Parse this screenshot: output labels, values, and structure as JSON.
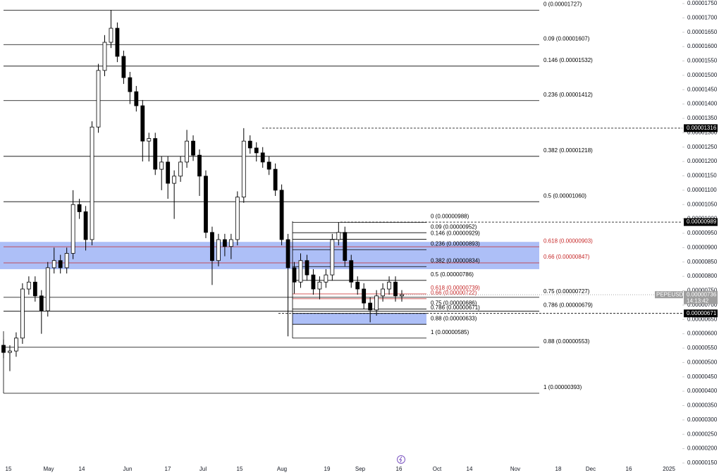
{
  "chart_data": {
    "type": "candlestick",
    "symbol": "PEPEUSDT",
    "last_price": {
      "value": 7.36e-06,
      "label": "0.00000736"
    },
    "countdown": "14:13:42",
    "up_color": "#ffffff",
    "down_color": "#000000",
    "zone_color": "#5b7ff0",
    "x_labels": [
      "15",
      "May",
      "14",
      "Jun",
      "17",
      "Jul",
      "15",
      "Aug",
      "19",
      "Sep",
      "16",
      "Oct",
      "14",
      "Nov",
      "18",
      "Dec",
      "16",
      "2025"
    ],
    "ylim": [
      1.5e-06,
      1.75e-05
    ],
    "yticks": [
      {
        "value": 1.75e-05,
        "label": "0.00001750"
      },
      {
        "value": 1.7e-05,
        "label": "0.00001700"
      },
      {
        "value": 1.65e-05,
        "label": "0.00001650"
      },
      {
        "value": 1.6e-05,
        "label": "0.00001600"
      },
      {
        "value": 1.55e-05,
        "label": "0.00001550"
      },
      {
        "value": 1.5e-05,
        "label": "0.00001500"
      },
      {
        "value": 1.45e-05,
        "label": "0.00001450"
      },
      {
        "value": 1.4e-05,
        "label": "0.00001400"
      },
      {
        "value": 1.35e-05,
        "label": "0.00001350"
      },
      {
        "value": 1.3e-05,
        "label": "0.00001300"
      },
      {
        "value": 1.25e-05,
        "label": "0.00001250"
      },
      {
        "value": 1.2e-05,
        "label": "0.00001200"
      },
      {
        "value": 1.15e-05,
        "label": "0.00001150"
      },
      {
        "value": 1.1e-05,
        "label": "0.00001100"
      },
      {
        "value": 1.05e-05,
        "label": "0.00001050"
      },
      {
        "value": 1e-05,
        "label": "0.00001000"
      },
      {
        "value": 9.5e-06,
        "label": "0.00000950"
      },
      {
        "value": 9e-06,
        "label": "0.00000900"
      },
      {
        "value": 8.5e-06,
        "label": "0.00000850"
      },
      {
        "value": 8e-06,
        "label": "0.00000800"
      },
      {
        "value": 7.5e-06,
        "label": "0.00000750"
      },
      {
        "value": 7e-06,
        "label": "0.00000700"
      },
      {
        "value": 6.5e-06,
        "label": "0.00000650"
      },
      {
        "value": 6e-06,
        "label": "0.00000600"
      },
      {
        "value": 5.5e-06,
        "label": "0.00000550"
      },
      {
        "value": 5e-06,
        "label": "0.00000500"
      },
      {
        "value": 4.5e-06,
        "label": "0.00000450"
      },
      {
        "value": 4e-06,
        "label": "0.00000400"
      },
      {
        "value": 3.5e-06,
        "label": "0.00000350"
      },
      {
        "value": 3e-06,
        "label": "0.00000300"
      },
      {
        "value": 2.5e-06,
        "label": "0.00000250"
      },
      {
        "value": 2e-06,
        "label": "0.00000200"
      },
      {
        "value": 1.5e-06,
        "label": "0.00000150"
      }
    ],
    "candles": [
      [
        5.6e-06,
        5.8e-06,
        5.15e-06,
        5.35e-06
      ],
      [
        5.35e-06,
        5.6e-06,
        4.7e-06,
        5.4e-06
      ],
      [
        5.4e-06,
        6.05e-06,
        5.2e-06,
        5.85e-06
      ],
      [
        5.85e-06,
        7.76e-06,
        5.65e-06,
        7.56e-06
      ],
      [
        7.56e-06,
        8e-06,
        7.36e-06,
        7.8e-06
      ],
      [
        7.8e-06,
        8e-06,
        7.12e-06,
        7.32e-06
      ],
      [
        7.32e-06,
        7.52e-06,
        6e-06,
        6.8e-06
      ],
      [
        6.8e-06,
        8.5e-06,
        6.6e-06,
        8.3e-06
      ],
      [
        8.3e-06,
        9e-06,
        8.1e-06,
        8.55e-06
      ],
      [
        8.55e-06,
        8.75e-06,
        8.1e-06,
        8.3e-06
      ],
      [
        8.3e-06,
        9e-06,
        8.1e-06,
        8.8e-06
      ],
      [
        8.8e-06,
        1.1e-05,
        8.6e-06,
        1.05e-05
      ],
      [
        1.05e-05,
        1.07e-05,
        1e-05,
        1.025e-05
      ],
      [
        1.025e-05,
        1.045e-05,
        8.9e-06,
        9.28e-06
      ],
      [
        9.28e-06,
        1.34e-05,
        9.08e-06,
        1.32e-05
      ],
      [
        1.32e-05,
        1.54e-05,
        1.3e-05,
        1.517e-05
      ],
      [
        1.517e-05,
        1.64e-05,
        1.497e-05,
        1.615e-05
      ],
      [
        1.615e-05,
        1.727e-05,
        1.595e-05,
        1.664e-05
      ],
      [
        1.664e-05,
        1.684e-05,
        1.546e-05,
        1.566e-05
      ],
      [
        1.566e-05,
        1.586e-05,
        1.47e-05,
        1.492e-05
      ],
      [
        1.492e-05,
        1.512e-05,
        1.4e-05,
        1.443e-05
      ],
      [
        1.443e-05,
        1.463e-05,
        1.374e-05,
        1.394e-05
      ],
      [
        1.394e-05,
        1.414e-05,
        1.2e-05,
        1.271e-05
      ],
      [
        1.271e-05,
        1.3e-05,
        1.2e-05,
        1.28e-05
      ],
      [
        1.28e-05,
        1.3e-05,
        1.153e-05,
        1.173e-05
      ],
      [
        1.173e-05,
        1.218e-05,
        1.1e-05,
        1.198e-05
      ],
      [
        1.198e-05,
        1.218e-05,
        1.07e-05,
        1.124e-05
      ],
      [
        1.124e-05,
        1.169e-05,
        1e-05,
        1.149e-05
      ],
      [
        1.149e-05,
        1.218e-05,
        1.129e-05,
        1.198e-05
      ],
      [
        1.198e-05,
        1.31e-05,
        1.178e-05,
        1.271e-05
      ],
      [
        1.271e-05,
        1.291e-05,
        1.202e-05,
        1.222e-05
      ],
      [
        1.222e-05,
        1.242e-05,
        1.08e-05,
        1.149e-05
      ],
      [
        1.149e-05,
        1.169e-05,
        9.33e-06,
        9.53e-06
      ],
      [
        9.53e-06,
        9.73e-06,
        7.7e-06,
        8.55e-06
      ],
      [
        8.55e-06,
        9.48e-06,
        8.35e-06,
        9.28e-06
      ],
      [
        9.28e-06,
        9.48e-06,
        8.7e-06,
        9.04e-06
      ],
      [
        9.04e-06,
        9.48e-06,
        8.6e-06,
        9.28e-06
      ],
      [
        9.28e-06,
        1.096e-05,
        9.08e-06,
        1.076e-05
      ],
      [
        1.076e-05,
        1.316e-05,
        1.056e-05,
        1.271e-05
      ],
      [
        1.271e-05,
        1.291e-05,
        1.227e-05,
        1.247e-05
      ],
      [
        1.247e-05,
        1.267e-05,
        1.2e-05,
        1.23e-05
      ],
      [
        1.23e-05,
        1.25e-05,
        1.178e-05,
        1.198e-05
      ],
      [
        1.198e-05,
        1.218e-05,
        1.153e-05,
        1.173e-05
      ],
      [
        1.173e-05,
        1.193e-05,
        1.08e-05,
        1.1e-05
      ],
      [
        1.1e-05,
        1.12e-05,
        9.08e-06,
        9.28e-06
      ],
      [
        9.28e-06,
        9.48e-06,
        5.91e-06,
        8.3e-06
      ],
      [
        8.3e-06,
        8.5e-06,
        7.4e-06,
        7.8e-06
      ],
      [
        7.8e-06,
        8.8e-06,
        7.6e-06,
        8.55e-06
      ],
      [
        8.55e-06,
        8.75e-06,
        7.85e-06,
        8.05e-06
      ],
      [
        8.05e-06,
        8.25e-06,
        7.36e-06,
        7.56e-06
      ],
      [
        7.56e-06,
        8e-06,
        7.2e-06,
        7.8e-06
      ],
      [
        7.8e-06,
        8.25e-06,
        7.6e-06,
        8.05e-06
      ],
      [
        8.05e-06,
        9.48e-06,
        7.85e-06,
        9.28e-06
      ],
      [
        9.28e-06,
        9.88e-06,
        9.08e-06,
        9.53e-06
      ],
      [
        9.53e-06,
        9.73e-06,
        8.35e-06,
        8.55e-06
      ],
      [
        8.55e-06,
        8.75e-06,
        7.6e-06,
        7.8e-06
      ],
      [
        7.8e-06,
        8e-06,
        7.36e-06,
        7.56e-06
      ],
      [
        7.56e-06,
        7.76e-06,
        6.87e-06,
        7.07e-06
      ],
      [
        7.07e-06,
        7.27e-06,
        6.4e-06,
        6.83e-06
      ],
      [
        6.83e-06,
        7.52e-06,
        6.63e-06,
        7.32e-06
      ],
      [
        7.32e-06,
        7.76e-06,
        7.12e-06,
        7.56e-06
      ],
      [
        7.56e-06,
        8e-06,
        7.36e-06,
        7.8e-06
      ],
      [
        7.8e-06,
        8e-06,
        7.12e-06,
        7.32e-06
      ],
      [
        7.32e-06,
        7.52e-06,
        7.12e-06,
        7.36e-06
      ]
    ],
    "zones": [
      [
        9.2e-06,
        8.25e-06
      ],
      [
        6.71e-06,
        6.33e-06
      ]
    ],
    "fib_sets": [
      {
        "levels": [
          {
            "label": "0 (0.00001727)",
            "value": 1.727e-05,
            "color": "#000000"
          },
          {
            "label": "0.09 (0.00001607)",
            "value": 1.607e-05,
            "color": "#000000"
          },
          {
            "label": "0.146 (0.00001532)",
            "value": 1.532e-05,
            "color": "#000000"
          },
          {
            "label": "0.236 (0.00001412)",
            "value": 1.412e-05,
            "color": "#000000"
          },
          {
            "label": "0.382 (0.00001218)",
            "value": 1.218e-05,
            "color": "#000000"
          },
          {
            "label": "0.5 (0.00001060)",
            "value": 1.06e-05,
            "color": "#000000"
          },
          {
            "label": "0.618 (0.00000903)",
            "value": 9.03e-06,
            "color": "#c62828"
          },
          {
            "label": "0.66 (0.00000847)",
            "value": 8.47e-06,
            "color": "#c62828"
          },
          {
            "label": "0.75 (0.00000727)",
            "value": 7.27e-06,
            "color": "#000000"
          },
          {
            "label": "0.786 (0.00000679)",
            "value": 6.79e-06,
            "color": "#000000"
          },
          {
            "label": "0.88 (0.00000553)",
            "value": 5.53e-06,
            "color": "#000000"
          },
          {
            "label": "1 (0.00000393)",
            "value": 3.93e-06,
            "color": "#000000"
          }
        ]
      },
      {
        "levels": [
          {
            "label": "0 (0.00000988)",
            "value": 9.88e-06,
            "color": "#000000"
          },
          {
            "label": "0.09 (0.00000952)",
            "value": 9.52e-06,
            "color": "#000000"
          },
          {
            "label": "0.146 (0.00000929)",
            "value": 9.29e-06,
            "color": "#000000"
          },
          {
            "label": "0.236 (0.00000893)",
            "value": 8.93e-06,
            "color": "#000000"
          },
          {
            "label": "0.382 (0.00000834)",
            "value": 8.34e-06,
            "color": "#000000"
          },
          {
            "label": "0.5 (0.00000786)",
            "value": 7.86e-06,
            "color": "#000000"
          },
          {
            "label": "0.618 (0.00000739)",
            "value": 7.39e-06,
            "color": "#c62828"
          },
          {
            "label": "0.66 (0.00000722)",
            "value": 7.22e-06,
            "color": "#c62828"
          },
          {
            "label": "0.75 (0.00000686)",
            "value": 6.86e-06,
            "color": "#000000"
          },
          {
            "label": "0.786 (0.00000671)",
            "value": 6.71e-06,
            "color": "#000000"
          },
          {
            "label": "0.88 (0.00000633)",
            "value": 6.33e-06,
            "color": "#000000"
          },
          {
            "label": "1 (0.00000585)",
            "value": 5.85e-06,
            "color": "#000000"
          }
        ]
      }
    ],
    "price_labels": [
      {
        "value": 1.316e-05,
        "label": "0.00001316"
      },
      {
        "value": 9.89e-06,
        "label": "0.00000989"
      },
      {
        "value": 6.71e-06,
        "label": "0.00000671"
      }
    ]
  }
}
